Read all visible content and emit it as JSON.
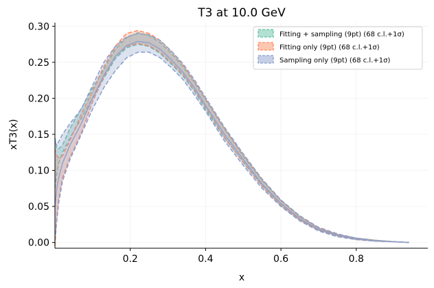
{
  "chart_data": {
    "type": "area",
    "title": "T3 at 10.0 GeV",
    "xlabel": "x",
    "ylabel": "xT3(x)",
    "xlim": [
      0.0,
      0.99
    ],
    "ylim": [
      -0.008,
      0.305
    ],
    "xticks": [
      0.2,
      0.4,
      0.6,
      0.8
    ],
    "xtick_labels": [
      "0.2",
      "0.4",
      "0.6",
      "0.8"
    ],
    "yticks": [
      0.0,
      0.05,
      0.1,
      0.15,
      0.2,
      0.25,
      0.3
    ],
    "ytick_labels": [
      "0.00",
      "0.05",
      "0.10",
      "0.15",
      "0.20",
      "0.25",
      "0.30"
    ],
    "grid": true,
    "legend_position": "top-right",
    "x": [
      0.0,
      0.005,
      0.01,
      0.02,
      0.04,
      0.07,
      0.1,
      0.13,
      0.16,
      0.19,
      0.22,
      0.25,
      0.28,
      0.31,
      0.34,
      0.37,
      0.4,
      0.45,
      0.5,
      0.55,
      0.6,
      0.65,
      0.7,
      0.75,
      0.8,
      0.85,
      0.9,
      0.94
    ],
    "series": [
      {
        "name": "Fitting + sampling (9pt) (68 c.l.+1σ)",
        "color": "#66c2a5",
        "lower": [
          0.075,
          0.095,
          0.11,
          0.125,
          0.145,
          0.172,
          0.2,
          0.228,
          0.255,
          0.27,
          0.275,
          0.272,
          0.262,
          0.247,
          0.231,
          0.21,
          0.185,
          0.145,
          0.112,
          0.079,
          0.052,
          0.031,
          0.017,
          0.009,
          0.004,
          0.002,
          0.001,
          0.0
        ],
        "upper": [
          0.145,
          0.13,
          0.13,
          0.135,
          0.158,
          0.186,
          0.214,
          0.24,
          0.268,
          0.284,
          0.291,
          0.287,
          0.277,
          0.262,
          0.244,
          0.222,
          0.198,
          0.158,
          0.12,
          0.086,
          0.058,
          0.036,
          0.02,
          0.011,
          0.006,
          0.003,
          0.001,
          0.0
        ]
      },
      {
        "name": "Fitting only (9pt) (68 c.l.+1σ)",
        "color": "#fc8d62",
        "lower": [
          -0.005,
          0.035,
          0.06,
          0.09,
          0.118,
          0.152,
          0.195,
          0.23,
          0.258,
          0.272,
          0.276,
          0.273,
          0.264,
          0.249,
          0.233,
          0.212,
          0.188,
          0.146,
          0.111,
          0.078,
          0.051,
          0.031,
          0.017,
          0.009,
          0.004,
          0.002,
          0.001,
          0.0
        ],
        "upper": [
          0.13,
          0.12,
          0.118,
          0.12,
          0.142,
          0.178,
          0.21,
          0.244,
          0.272,
          0.29,
          0.294,
          0.29,
          0.28,
          0.265,
          0.246,
          0.224,
          0.2,
          0.158,
          0.122,
          0.087,
          0.058,
          0.036,
          0.02,
          0.011,
          0.006,
          0.003,
          0.001,
          0.0
        ]
      },
      {
        "name": "Sampling only (9pt) (68 c.l.+1σ)",
        "color": "#8da0cb",
        "lower": [
          0.002,
          0.03,
          0.055,
          0.085,
          0.115,
          0.15,
          0.185,
          0.215,
          0.238,
          0.256,
          0.264,
          0.264,
          0.256,
          0.242,
          0.226,
          0.205,
          0.182,
          0.141,
          0.107,
          0.075,
          0.05,
          0.03,
          0.016,
          0.008,
          0.004,
          0.002,
          0.001,
          0.0
        ],
        "upper": [
          0.14,
          0.135,
          0.14,
          0.15,
          0.165,
          0.185,
          0.218,
          0.25,
          0.272,
          0.285,
          0.29,
          0.288,
          0.28,
          0.265,
          0.248,
          0.226,
          0.201,
          0.16,
          0.123,
          0.088,
          0.059,
          0.037,
          0.021,
          0.012,
          0.006,
          0.003,
          0.001,
          0.0
        ],
        "central": [
          0.05,
          0.075,
          0.09,
          0.11,
          0.135,
          0.165,
          0.2,
          0.232,
          0.258,
          0.273,
          0.279,
          0.277,
          0.268,
          0.253,
          0.236,
          0.215,
          0.19,
          0.15,
          0.115,
          0.081,
          0.054,
          0.033,
          0.018,
          0.01,
          0.005,
          0.002,
          0.001,
          0.0
        ]
      }
    ]
  }
}
